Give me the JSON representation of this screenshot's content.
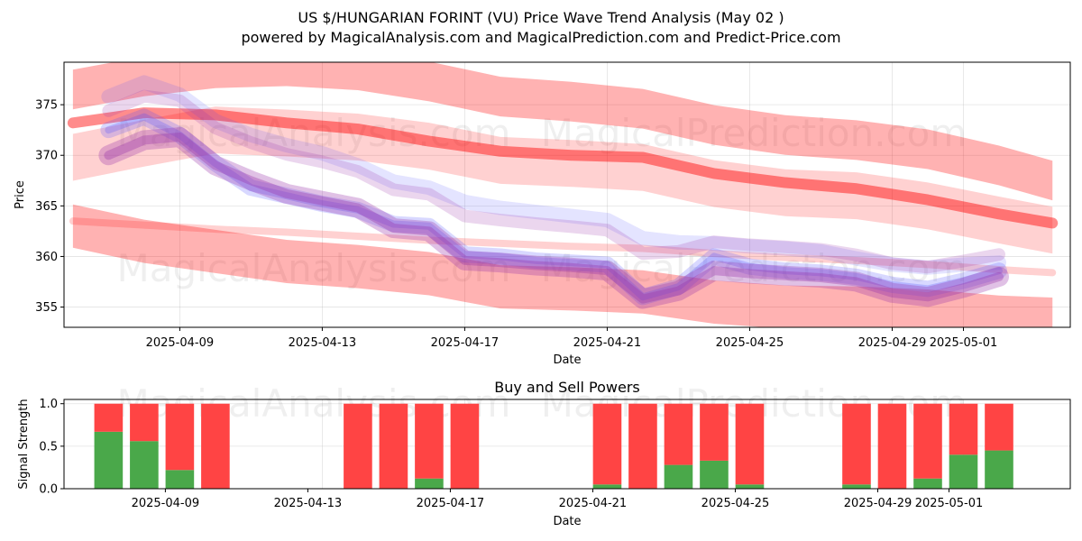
{
  "title": "US $/HUNGARIAN FORINT (VU) Price Wave Trend Analysis (May 02 )",
  "subtitle": "powered by MagicalAnalysis.com and MagicalPrediction.com and Predict-Price.com",
  "watermarks": [
    "MagicalAnalysis.com",
    "MagicalPrediction.com"
  ],
  "chart_data": [
    {
      "type": "line",
      "title": "",
      "xlabel": "Date",
      "ylabel": "Price",
      "x_range": [
        "2025-04-05 18:00",
        "2025-05-04 00:00"
      ],
      "ylim": [
        353,
        379.2
      ],
      "yticks": [
        355,
        360,
        365,
        370,
        375
      ],
      "xtick_labels": [
        "2025-04-09",
        "2025-04-13",
        "2025-04-17",
        "2025-04-21",
        "2025-04-25",
        "2025-04-29",
        "2025-05-01"
      ],
      "xtick_dates": [
        "2025-04-09",
        "2025-04-13",
        "2025-04-17",
        "2025-04-21",
        "2025-04-25",
        "2025-04-29",
        "2025-05-01"
      ],
      "grid": true,
      "colors": {
        "trend_band": "#ff0000",
        "price_wave": "#4d4dff",
        "predicted_wave": "#9933aa"
      },
      "trend_channel": {
        "x": [
          "2025-04-06",
          "2025-05-03 12:00"
        ],
        "upper": [
          376.0,
          366.5
        ],
        "middle": [
          371.0,
          362.7
        ],
        "lower": [
          363.8,
          356.0
        ],
        "upper_band": [
          [
            2025,
            0
          ]
        ],
        "channel_x": [
          "2025-04-06",
          "2025-04-08",
          "2025-04-10",
          "2025-04-12",
          "2025-04-14",
          "2025-04-16",
          "2025-04-18",
          "2025-04-20",
          "2025-04-22",
          "2025-04-24",
          "2025-04-26",
          "2025-04-28",
          "2025-04-30",
          "2025-05-02",
          "2025-05-03 12:00"
        ],
        "channel_upper": [
          376.5,
          377.8,
          378.6,
          378.8,
          378.4,
          377.3,
          375.8,
          375.3,
          374.6,
          373.0,
          372.0,
          371.5,
          370.6,
          369.0,
          367.5
        ],
        "channel_mid": [
          369.8,
          371.2,
          372.5,
          372.2,
          371.8,
          370.9,
          369.5,
          369.2,
          368.8,
          367.2,
          366.3,
          366.0,
          365.0,
          363.6,
          362.6
        ],
        "channel_lower": [
          363.0,
          361.5,
          360.5,
          359.5,
          359.0,
          358.3,
          357.0,
          356.8,
          356.5,
          355.5,
          355.0,
          354.9,
          354.6,
          354.0,
          353.8
        ],
        "mid_line": [
          373.2,
          374.2,
          374.0,
          373.2,
          372.6,
          371.4,
          370.4,
          370.0,
          369.8,
          368.2,
          367.3,
          366.7,
          365.6,
          364.2,
          363.3
        ],
        "low_line": [
          363.5,
          363.1,
          362.7,
          362.4,
          362.0,
          361.6,
          361.3,
          361.0,
          360.8,
          360.3,
          359.9,
          359.6,
          359.2,
          358.7,
          358.4
        ]
      },
      "price_wave_x": [
        "2025-04-07",
        "2025-04-08",
        "2025-04-09",
        "2025-04-10",
        "2025-04-11",
        "2025-04-12",
        "2025-04-13",
        "2025-04-14",
        "2025-04-15",
        "2025-04-16",
        "2025-04-17",
        "2025-04-18",
        "2025-04-19",
        "2025-04-20",
        "2025-04-21",
        "2025-04-22",
        "2025-04-23",
        "2025-04-24",
        "2025-04-25",
        "2025-04-26",
        "2025-04-27",
        "2025-04-28",
        "2025-04-29",
        "2025-04-30",
        "2025-05-01",
        "2025-05-02"
      ],
      "price_wave": [
        372.5,
        373.8,
        372.0,
        369.2,
        366.8,
        366.0,
        365.2,
        364.6,
        363.2,
        363.0,
        360.2,
        360.0,
        359.6,
        359.4,
        359.2,
        356.0,
        357.0,
        360.0,
        359.0,
        358.6,
        358.4,
        358.0,
        357.2,
        356.8,
        357.6,
        358.6
      ],
      "predicted_wave": [
        370.0,
        371.5,
        371.8,
        369.0,
        367.5,
        366.2,
        365.5,
        364.8,
        362.8,
        362.5,
        359.6,
        359.4,
        359.1,
        358.9,
        358.6,
        355.8,
        356.6,
        358.6,
        358.3,
        358.1,
        357.9,
        357.5,
        356.4,
        356.0,
        356.9,
        358.0
      ],
      "upper_wave": [
        375.8,
        377.2,
        376.0,
        373.4,
        372.0,
        371.0,
        370.2,
        369.0,
        367.4,
        366.8,
        365.4,
        364.8,
        364.4,
        364.0,
        363.6,
        361.8,
        361.4,
        361.3,
        361.0,
        360.8,
        360.5,
        359.8,
        359.2,
        358.9,
        359.2,
        359.4
      ]
    },
    {
      "type": "bar",
      "title": "Buy and Sell Powers",
      "xlabel": "Date",
      "ylabel": "Signal Strength",
      "ylim": [
        0,
        1.05
      ],
      "yticks": [
        0.0,
        0.5,
        1.0
      ],
      "ytick_labels": [
        "0.0",
        "0.5",
        "1.0"
      ],
      "xtick_labels": [
        "2025-04-09",
        "2025-04-13",
        "2025-04-17",
        "2025-04-21",
        "2025-04-25",
        "2025-04-29",
        "2025-05-01"
      ],
      "stacked": true,
      "colors": {
        "buy": "#4aa84a",
        "sell": "#ff4444"
      },
      "dates": [
        "2025-04-07",
        "2025-04-08",
        "2025-04-09",
        "2025-04-10",
        "2025-04-14",
        "2025-04-15",
        "2025-04-16",
        "2025-04-17",
        "2025-04-21",
        "2025-04-22",
        "2025-04-23",
        "2025-04-24",
        "2025-04-25",
        "2025-04-28",
        "2025-04-29",
        "2025-04-30",
        "2025-05-01",
        "2025-05-02"
      ],
      "series": [
        {
          "name": "Buy",
          "values": [
            0.67,
            0.56,
            0.22,
            0.0,
            0.0,
            0.0,
            0.12,
            0.0,
            0.05,
            0.0,
            0.28,
            0.33,
            0.05,
            0.05,
            0.0,
            0.12,
            0.4,
            0.45
          ]
        },
        {
          "name": "Sell",
          "values": [
            0.33,
            0.44,
            0.78,
            1.0,
            1.0,
            1.0,
            0.88,
            1.0,
            0.95,
            1.0,
            0.72,
            0.67,
            0.95,
            0.95,
            1.0,
            0.88,
            0.6,
            0.55
          ]
        }
      ]
    }
  ]
}
